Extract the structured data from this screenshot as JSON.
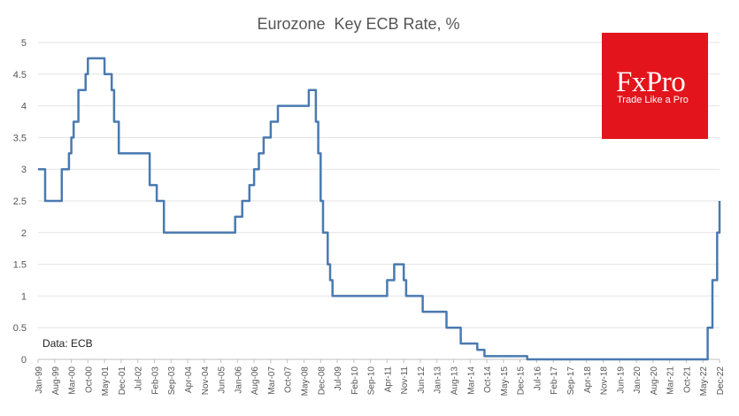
{
  "chart_data": {
    "type": "line",
    "title": "Eurozone  Key ECB Rate, %",
    "xlabel": "",
    "ylabel": "",
    "ylim": [
      0,
      5
    ],
    "yticks": [
      "0",
      "0.5",
      "1",
      "1.5",
      "2",
      "2.5",
      "3",
      "3.5",
      "4",
      "4.5",
      "5"
    ],
    "x_tick_labels": [
      "Jan-99",
      "Aug-99",
      "Mar-00",
      "Oct-00",
      "May-01",
      "Dec-01",
      "Jul-02",
      "Feb-03",
      "Sep-03",
      "Apr-04",
      "Nov-04",
      "Jun-05",
      "Jan-06",
      "Aug-06",
      "Mar-07",
      "Oct-07",
      "May-08",
      "Dec-08",
      "Jul-09",
      "Feb-10",
      "Sep-10",
      "Apr-11",
      "Nov-11",
      "Jun-12",
      "Jan-13",
      "Aug-13",
      "Mar-14",
      "Oct-14",
      "May-15",
      "Dec-15",
      "Jul-16",
      "Feb-17",
      "Sep-17",
      "Apr-18",
      "Nov-18",
      "Jun-19",
      "Jan-20",
      "Aug-20",
      "Mar-21",
      "Oct-21",
      "May-22",
      "Dec-22"
    ],
    "grid": true,
    "color": "#4a7ab0",
    "series": [
      {
        "values": [
          [
            "1999-01",
            3.0
          ],
          [
            "1999-04",
            2.5
          ],
          [
            "1999-11",
            3.0
          ],
          [
            "2000-02",
            3.25
          ],
          [
            "2000-03",
            3.5
          ],
          [
            "2000-04",
            3.75
          ],
          [
            "2000-06",
            4.25
          ],
          [
            "2000-09",
            4.5
          ],
          [
            "2000-10",
            4.75
          ],
          [
            "2001-05",
            4.5
          ],
          [
            "2001-08",
            4.25
          ],
          [
            "2001-09",
            3.75
          ],
          [
            "2001-11",
            3.25
          ],
          [
            "2002-12",
            2.75
          ],
          [
            "2003-03",
            2.5
          ],
          [
            "2003-06",
            2.0
          ],
          [
            "2005-12",
            2.25
          ],
          [
            "2006-03",
            2.5
          ],
          [
            "2006-06",
            2.75
          ],
          [
            "2006-08",
            3.0
          ],
          [
            "2006-10",
            3.25
          ],
          [
            "2006-12",
            3.5
          ],
          [
            "2007-03",
            3.75
          ],
          [
            "2007-06",
            4.0
          ],
          [
            "2008-07",
            4.25
          ],
          [
            "2008-10",
            3.75
          ],
          [
            "2008-11",
            3.25
          ],
          [
            "2008-12",
            2.5
          ],
          [
            "2009-01",
            2.0
          ],
          [
            "2009-03",
            1.5
          ],
          [
            "2009-04",
            1.25
          ],
          [
            "2009-05",
            1.0
          ],
          [
            "2011-04",
            1.25
          ],
          [
            "2011-07",
            1.5
          ],
          [
            "2011-11",
            1.25
          ],
          [
            "2011-12",
            1.0
          ],
          [
            "2012-07",
            0.75
          ],
          [
            "2013-05",
            0.5
          ],
          [
            "2013-11",
            0.25
          ],
          [
            "2014-06",
            0.15
          ],
          [
            "2014-09",
            0.05
          ],
          [
            "2016-03",
            0.0
          ],
          [
            "2022-07",
            0.5
          ],
          [
            "2022-09",
            1.25
          ],
          [
            "2022-11",
            2.0
          ],
          [
            "2022-12",
            2.5
          ]
        ]
      }
    ],
    "annotation": "Data: ECB"
  },
  "logo": {
    "name": "FxPro",
    "tagline": "Trade Like a Pro",
    "color": "#e3141b"
  }
}
